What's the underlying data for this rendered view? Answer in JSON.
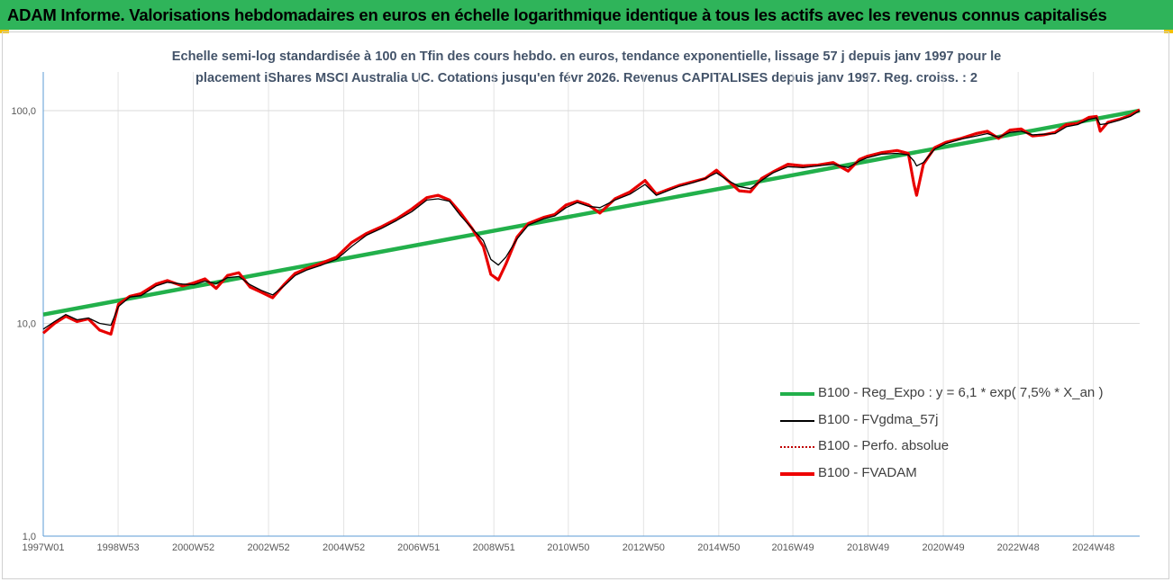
{
  "header": {
    "title": "ADAM Informe. Valorisations hebdomadaires en euros en échelle logarithmique identique à tous les actifs avec les revenus connus capitalisés"
  },
  "colors": {
    "banner": "#2fb45a",
    "trend": "#22b04b",
    "fvgdma": "#000000",
    "perfo": "#c00000",
    "fvadam": "#ee0000",
    "corner_marks": "#f2c200"
  },
  "chart_data": {
    "type": "line",
    "title_line1": "Echelle semi-log standardisée à 100 en Tfin des cours hebdo. en euros, tendance exponentielle, lissage 57 j depuis janv 1997 pour le",
    "title_line2": "placement iShares MSCI Australia UC. Cotations jusqu'en févr 2026. Revenus CAPITALISES depuis janv 1997. Reg. croiss. : 2",
    "y_scale": "log10",
    "ylim": [
      1,
      152
    ],
    "y_ticks": [
      1,
      10,
      100
    ],
    "y_tick_labels": [
      "1,0",
      "10,0",
      "100,0"
    ],
    "xlim": [
      1997.0,
      2026.15
    ],
    "x_ticks": [
      1997.0,
      1998.99,
      2000.99,
      2002.99,
      2004.99,
      2006.98,
      2008.98,
      2010.96,
      2012.96,
      2014.96,
      2016.93,
      2018.93,
      2020.93,
      2022.92,
      2024.92
    ],
    "x_tick_labels": [
      "1997W01",
      "1998W53",
      "2000W52",
      "2002W52",
      "2004W52",
      "2006W51",
      "2008W51",
      "2010W50",
      "2012W50",
      "2014W50",
      "2016W49",
      "2018W49",
      "2020W49",
      "2022W48",
      "2024W48"
    ],
    "gridlines": "horizontal at 10 and 100, vertical at every x tick",
    "legend_position": "bottom-right",
    "x": [
      1997.0,
      1997.3,
      1997.6,
      1997.9,
      1998.2,
      1998.5,
      1998.8,
      1999.0,
      1999.3,
      1999.6,
      2000.0,
      2000.3,
      2000.7,
      2001.0,
      2001.3,
      2001.6,
      2001.9,
      2002.2,
      2002.5,
      2002.8,
      2003.1,
      2003.4,
      2003.7,
      2004.0,
      2004.4,
      2004.8,
      2005.2,
      2005.6,
      2006.0,
      2006.4,
      2006.8,
      2007.2,
      2007.5,
      2007.8,
      2008.1,
      2008.4,
      2008.7,
      2008.9,
      2009.1,
      2009.3,
      2009.6,
      2009.9,
      2010.3,
      2010.6,
      2010.9,
      2011.2,
      2011.5,
      2011.8,
      2012.2,
      2012.6,
      2013.0,
      2013.3,
      2013.6,
      2013.9,
      2014.3,
      2014.6,
      2014.9,
      2015.2,
      2015.5,
      2015.8,
      2016.1,
      2016.4,
      2016.8,
      2017.2,
      2017.6,
      2018.0,
      2018.4,
      2018.7,
      2018.9,
      2019.3,
      2019.7,
      2020.0,
      2020.15,
      2020.22,
      2020.4,
      2020.7,
      2021.0,
      2021.4,
      2021.8,
      2022.1,
      2022.4,
      2022.7,
      2023.0,
      2023.3,
      2023.6,
      2023.9,
      2024.2,
      2024.5,
      2024.8,
      2025.0,
      2025.1,
      2025.3,
      2025.6,
      2025.9,
      2026.15
    ],
    "trend": {
      "x": [
        1997.0,
        2026.15
      ],
      "values": [
        11.0,
        100.0
      ]
    },
    "series": [
      {
        "name": "B100 - Reg_Expo : y = 6,1 * exp( 7,5% *  X_an )",
        "kind": "trend"
      },
      {
        "name": "B100 - FVgdma_57j",
        "kind": "fvgdma",
        "values": [
          9.4,
          10.2,
          11.0,
          10.4,
          10.6,
          10.0,
          9.8,
          12.0,
          13.3,
          13.5,
          15.0,
          15.6,
          15.3,
          15.2,
          15.8,
          15.4,
          16.4,
          16.6,
          15.2,
          14.3,
          13.6,
          15.0,
          16.8,
          17.8,
          18.8,
          20.0,
          23.0,
          26.0,
          28.0,
          30.5,
          33.5,
          38.0,
          38.5,
          37.5,
          32.0,
          28.0,
          24.5,
          20.0,
          18.8,
          20.5,
          25.0,
          29.0,
          31.0,
          32.0,
          35.0,
          37.0,
          35.5,
          35.0,
          38.0,
          40.5,
          45.0,
          40.0,
          42.0,
          44.0,
          46.0,
          48.0,
          51.0,
          47.0,
          44.0,
          43.0,
          47.0,
          51.0,
          54.5,
          54.0,
          55.0,
          56.0,
          54.0,
          58.0,
          60.0,
          62.5,
          63.0,
          62.0,
          58.0,
          55.0,
          57.0,
          66.0,
          70.0,
          73.5,
          76.0,
          78.0,
          75.0,
          79.0,
          80.0,
          77.0,
          77.5,
          78.0,
          84.0,
          86.0,
          91.0,
          92.5,
          86.0,
          87.0,
          90.0,
          94.0,
          100.0
        ]
      },
      {
        "name": "B100 - Perfo. absolue",
        "kind": "perfo",
        "values": [
          9.0,
          10.0,
          10.8,
          10.2,
          10.5,
          9.3,
          8.9,
          12.3,
          13.4,
          13.8,
          15.3,
          15.9,
          15.0,
          15.5,
          16.2,
          14.6,
          16.8,
          17.3,
          14.8,
          14.0,
          13.2,
          15.2,
          17.2,
          18.1,
          19.2,
          20.5,
          24.0,
          26.5,
          28.5,
          31.0,
          34.5,
          39.0,
          40.0,
          38.0,
          33.0,
          28.0,
          23.0,
          17.0,
          16.0,
          19.0,
          25.5,
          29.5,
          31.5,
          32.5,
          36.0,
          37.5,
          36.0,
          33.0,
          38.5,
          41.5,
          47.0,
          40.5,
          42.5,
          44.5,
          46.5,
          48.0,
          52.5,
          47.0,
          42.0,
          41.5,
          48.0,
          51.5,
          56.0,
          55.0,
          55.5,
          57.0,
          52.0,
          59.0,
          61.0,
          63.5,
          65.0,
          63.0,
          45.0,
          40.0,
          56.0,
          67.0,
          71.0,
          74.0,
          78.0,
          80.0,
          74.0,
          81.0,
          82.0,
          76.0,
          77.0,
          79.0,
          86.0,
          87.0,
          93.0,
          94.0,
          80.0,
          88.0,
          91.0,
          95.0,
          101.0
        ]
      },
      {
        "name": "B100 - FVADAM",
        "kind": "fvadam",
        "values": [
          9.0,
          10.0,
          10.8,
          10.2,
          10.5,
          9.3,
          8.9,
          12.3,
          13.4,
          13.8,
          15.3,
          15.9,
          15.0,
          15.5,
          16.2,
          14.6,
          16.8,
          17.3,
          14.8,
          14.0,
          13.2,
          15.2,
          17.2,
          18.1,
          19.2,
          20.5,
          24.0,
          26.5,
          28.5,
          31.0,
          34.5,
          39.0,
          40.0,
          38.0,
          33.0,
          28.0,
          23.0,
          17.0,
          16.0,
          19.0,
          25.5,
          29.5,
          31.5,
          32.5,
          36.0,
          37.5,
          36.0,
          33.0,
          38.5,
          41.5,
          47.0,
          40.5,
          42.5,
          44.5,
          46.5,
          48.0,
          52.5,
          47.0,
          42.0,
          41.5,
          48.0,
          51.5,
          56.0,
          55.0,
          55.5,
          57.0,
          52.0,
          59.0,
          61.0,
          63.5,
          65.0,
          63.0,
          45.0,
          40.0,
          56.0,
          67.0,
          71.0,
          74.0,
          78.0,
          80.0,
          74.0,
          81.0,
          82.0,
          76.0,
          77.0,
          79.0,
          86.0,
          87.0,
          93.0,
          94.0,
          80.0,
          88.0,
          91.0,
          95.0,
          101.0
        ]
      }
    ]
  }
}
